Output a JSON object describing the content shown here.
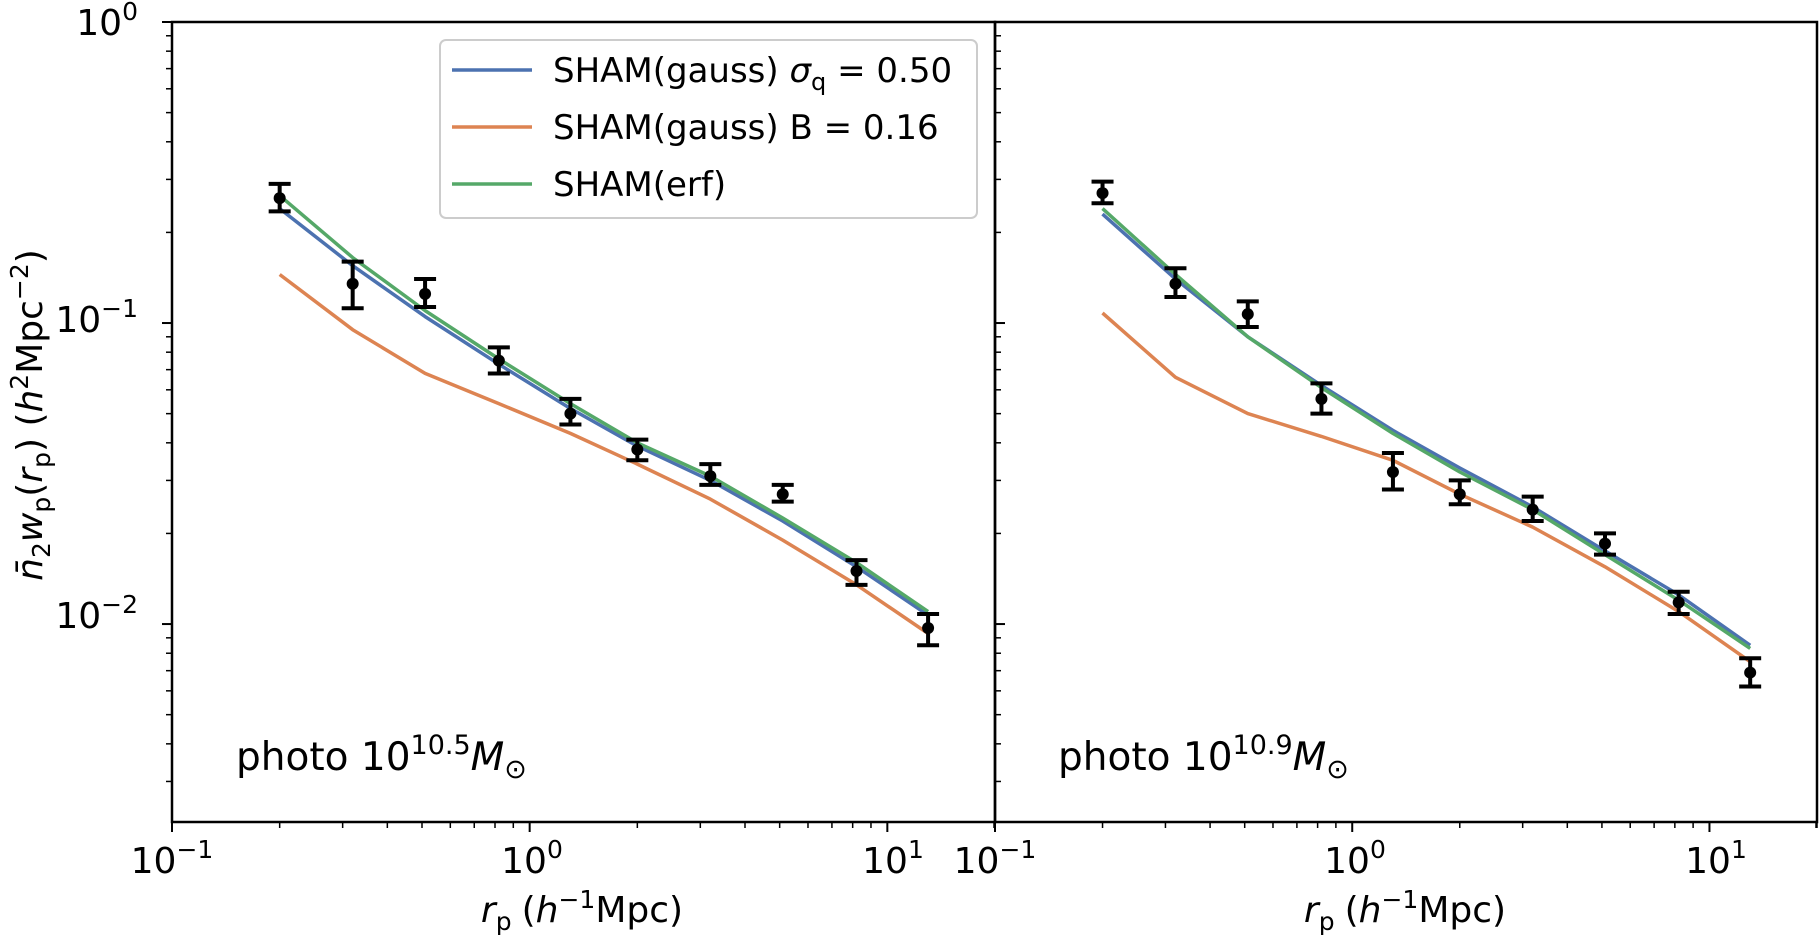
{
  "colors": {
    "blue": "#4c72b0",
    "orange": "#dd8452",
    "green": "#55a868",
    "data": "#000000"
  },
  "shared_axes": {
    "ylabel": {
      "main": "n̄",
      "sub1": "2",
      "w": "w",
      "sub2": "p",
      "open": "(",
      "r": "r",
      "sub3": "p",
      "close": ") (",
      "h": "h",
      "sup1": "2",
      "mpc": "Mpc",
      "sup2": "−2",
      "end": ")"
    },
    "xlabel": {
      "r": "r",
      "sub": "p",
      "open": "(",
      "h": "h",
      "sup": "−1",
      "rest": "Mpc)"
    }
  },
  "legend": [
    {
      "key": "gauss_sigma",
      "pre": "SHAM(gauss) ",
      "sym": "σ",
      "sub": "q",
      "post": " = 0.50",
      "color": "blue"
    },
    {
      "key": "gauss_B",
      "pre": "SHAM(gauss) ",
      "sym": "",
      "sub": "",
      "post": "B = 0.16",
      "color": "orange"
    },
    {
      "key": "erf",
      "pre": "SHAM(erf)",
      "sym": "",
      "sub": "",
      "post": "",
      "color": "green"
    }
  ],
  "chart_data": [
    {
      "type": "line",
      "panel": "left",
      "annotation": {
        "pre": "photo 10",
        "sup": "10.5",
        "sym": "M",
        "sub": "⊙"
      },
      "xscale": "log",
      "yscale": "log",
      "xlim": [
        0.1,
        20
      ],
      "ylim": [
        0.0022,
        1.0
      ],
      "xticks": [
        {
          "value": 0.1,
          "base": "10",
          "exp": "−1"
        },
        {
          "value": 1,
          "base": "10",
          "exp": "0"
        },
        {
          "value": 10,
          "base": "10",
          "exp": "1"
        }
      ],
      "yticks": [
        {
          "value": 1,
          "base": "10",
          "exp": "0"
        },
        {
          "value": 0.1,
          "base": "10",
          "exp": "−1"
        },
        {
          "value": 0.01,
          "base": "10",
          "exp": "−2"
        }
      ],
      "series": [
        {
          "name": "SHAM(gauss) σq = 0.50",
          "color": "blue",
          "x": [
            0.2,
            0.32,
            0.51,
            0.82,
            1.3,
            2.0,
            3.2,
            5.1,
            8.2,
            13.0
          ],
          "y": [
            0.24,
            0.155,
            0.105,
            0.073,
            0.052,
            0.039,
            0.03,
            0.022,
            0.0155,
            0.0107
          ]
        },
        {
          "name": "SHAM(gauss) B = 0.16",
          "color": "orange",
          "x": [
            0.2,
            0.32,
            0.51,
            0.82,
            1.3,
            2.0,
            3.2,
            5.1,
            8.2,
            13.0
          ],
          "y": [
            0.145,
            0.095,
            0.068,
            0.054,
            0.043,
            0.034,
            0.026,
            0.019,
            0.0135,
            0.0093
          ]
        },
        {
          "name": "SHAM(erf)",
          "color": "green",
          "x": [
            0.2,
            0.32,
            0.51,
            0.82,
            1.3,
            2.0,
            3.2,
            5.1,
            8.2,
            13.0
          ],
          "y": [
            0.265,
            0.165,
            0.11,
            0.076,
            0.054,
            0.04,
            0.031,
            0.0225,
            0.016,
            0.011
          ]
        }
      ],
      "points": {
        "x": [
          0.2,
          0.32,
          0.51,
          0.82,
          1.3,
          2.0,
          3.2,
          5.1,
          8.2,
          13.0
        ],
        "y": [
          0.26,
          0.135,
          0.125,
          0.075,
          0.05,
          0.038,
          0.031,
          0.027,
          0.015,
          0.0097
        ],
        "lo": [
          0.235,
          0.112,
          0.113,
          0.068,
          0.046,
          0.035,
          0.029,
          0.0255,
          0.0135,
          0.0085
        ],
        "hi": [
          0.29,
          0.16,
          0.14,
          0.083,
          0.056,
          0.041,
          0.034,
          0.029,
          0.0163,
          0.0108
        ]
      }
    },
    {
      "type": "line",
      "panel": "right",
      "annotation": {
        "pre": "photo 10",
        "sup": "10.9",
        "sym": "M",
        "sub": "⊙"
      },
      "xscale": "log",
      "yscale": "log",
      "xlim": [
        0.1,
        20
      ],
      "ylim": [
        0.0022,
        1.0
      ],
      "xticks": [
        {
          "value": 0.1,
          "base": "10",
          "exp": "−1"
        },
        {
          "value": 1,
          "base": "10",
          "exp": "0"
        },
        {
          "value": 10,
          "base": "10",
          "exp": "1"
        }
      ],
      "yticks": [],
      "series": [
        {
          "name": "SHAM(gauss) σq = 0.50",
          "color": "blue",
          "x": [
            0.2,
            0.32,
            0.51,
            0.82,
            1.3,
            2.0,
            3.2,
            5.1,
            8.2,
            13.0
          ],
          "y": [
            0.23,
            0.14,
            0.09,
            0.062,
            0.044,
            0.033,
            0.0245,
            0.0175,
            0.0125,
            0.0085
          ]
        },
        {
          "name": "SHAM(gauss) B = 0.16",
          "color": "orange",
          "x": [
            0.2,
            0.32,
            0.51,
            0.82,
            1.3,
            2.0,
            3.2,
            5.1,
            8.2,
            13.0
          ],
          "y": [
            0.108,
            0.066,
            0.05,
            0.042,
            0.035,
            0.027,
            0.021,
            0.0155,
            0.011,
            0.0075
          ]
        },
        {
          "name": "SHAM(erf)",
          "color": "green",
          "x": [
            0.2,
            0.32,
            0.51,
            0.82,
            1.3,
            2.0,
            3.2,
            5.1,
            8.2,
            13.0
          ],
          "y": [
            0.24,
            0.145,
            0.09,
            0.061,
            0.043,
            0.032,
            0.024,
            0.017,
            0.012,
            0.0083
          ]
        }
      ],
      "points": {
        "x": [
          0.2,
          0.32,
          0.51,
          0.82,
          1.3,
          2.0,
          3.2,
          5.1,
          8.2,
          13.0
        ],
        "y": [
          0.27,
          0.135,
          0.107,
          0.056,
          0.032,
          0.027,
          0.024,
          0.0185,
          0.0118,
          0.0069
        ],
        "lo": [
          0.25,
          0.122,
          0.097,
          0.05,
          0.028,
          0.025,
          0.022,
          0.017,
          0.0108,
          0.0062
        ],
        "hi": [
          0.295,
          0.152,
          0.118,
          0.063,
          0.037,
          0.03,
          0.0265,
          0.02,
          0.0128,
          0.0077
        ]
      }
    }
  ]
}
